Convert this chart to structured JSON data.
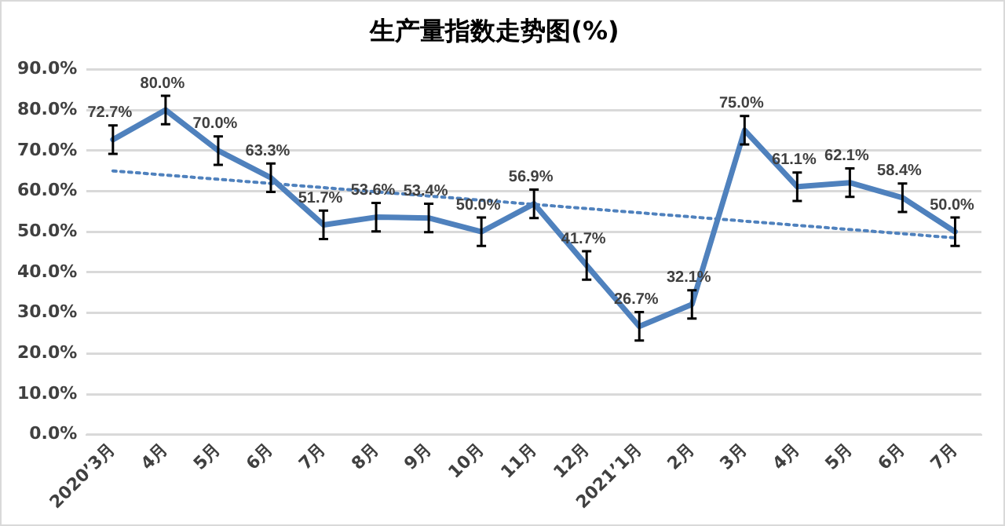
{
  "chart_data": {
    "type": "line",
    "title": "生产量指数走势图(%)",
    "categories": [
      "2020’3月",
      "4月",
      "5月",
      "6月",
      "7月",
      "8月",
      "9月",
      "10月",
      "11月",
      "12月",
      "2021’1月",
      "2月",
      "3月",
      "4月",
      "5月",
      "6月",
      "7月"
    ],
    "series": [
      {
        "color": "#4f81bd",
        "values": [
          72.7,
          80.0,
          70.0,
          63.3,
          51.7,
          53.6,
          53.4,
          50.0,
          56.9,
          41.7,
          26.7,
          32.1,
          75.0,
          61.1,
          62.1,
          58.4,
          50.0
        ],
        "errors": [
          3.5,
          3.5,
          3.5,
          3.5,
          3.5,
          3.5,
          3.5,
          3.5,
          3.5,
          3.5,
          3.5,
          3.5,
          3.5,
          3.5,
          3.5,
          3.5,
          3.5
        ],
        "value_labels": [
          "72.7%",
          "80.0%",
          "70.0%",
          "63.3%",
          "51.7%",
          "53.6%",
          "53.4%",
          "50.0%",
          "56.9%",
          "41.7%",
          "26.7%",
          "32.1%",
          "75.0%",
          "61.1%",
          "62.1%",
          "58.4%",
          "50.0%"
        ]
      },
      {
        "type": "line",
        "color": "#4f81bd",
        "line_style": "dotted",
        "values": [
          65,
          null,
          null,
          null,
          null,
          null,
          null,
          null,
          null,
          null,
          null,
          null,
          null,
          null,
          null,
          null,
          48.5
        ]
      }
    ],
    "ylim": [
      0,
      90
    ],
    "yticks": [
      {
        "value": 0,
        "label": "0.0%"
      },
      {
        "value": 10,
        "label": "10.0%"
      },
      {
        "value": 20,
        "label": "20.0%"
      },
      {
        "value": 30,
        "label": "30.0%"
      },
      {
        "value": 40,
        "label": "40.0%"
      },
      {
        "value": 50,
        "label": "50.0%"
      },
      {
        "value": 60,
        "label": "60.0%"
      },
      {
        "value": 70,
        "label": "70.0%"
      },
      {
        "value": 80,
        "label": "80.0%"
      },
      {
        "value": 90,
        "label": "90.0%"
      }
    ],
    "grid": "y",
    "legend": false,
    "marker": "none"
  }
}
